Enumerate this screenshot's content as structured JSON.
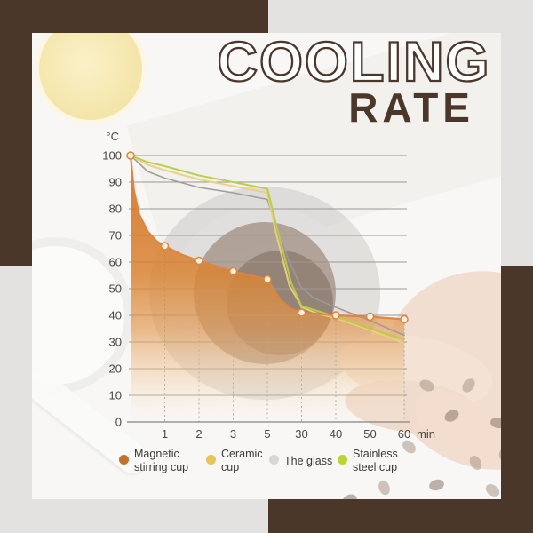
{
  "title": {
    "line1": "COOLING",
    "line2": "RATE"
  },
  "colors": {
    "frame_brown": "#4b372a",
    "background_gray": "#e4e2e0",
    "card_white": "#f8f7f5",
    "accent_orange": "#dd8440"
  },
  "chart_data": {
    "type": "line",
    "y_unit": "°C",
    "x_unit": "min",
    "ylim": [
      0,
      100
    ],
    "y_ticks": [
      0,
      10,
      20,
      30,
      40,
      50,
      60,
      70,
      80,
      90,
      100
    ],
    "x_ticks": [
      "1",
      "2",
      "3",
      "5",
      "30",
      "40",
      "50",
      "60"
    ],
    "x_scale_note": "categorical axis: equal spacing; point x given in tick-index units (0 = start at 100°C, 1..8 = ticks 1,2,3,5,30,40,50,60 min)",
    "grid": true,
    "series": [
      {
        "name": "The glass",
        "color": "#9d9a95",
        "width": 1.6,
        "area": false,
        "marker": false,
        "start": 100,
        "tick_values": {
          "1": 91.5,
          "2": 88,
          "3": 86,
          "5": 83.5,
          "30": 50.5,
          "40": 43,
          "50": 38,
          "60": 32.5
        },
        "points": [
          [
            0,
            100
          ],
          [
            0.5,
            94
          ],
          [
            1,
            91.5
          ],
          [
            2,
            88
          ],
          [
            3,
            86
          ],
          [
            4,
            83.5
          ],
          [
            4.3,
            71.5
          ],
          [
            4.6,
            61.5
          ],
          [
            4.95,
            51.5
          ],
          [
            5,
            50.5
          ],
          [
            5.35,
            46.5
          ],
          [
            6,
            43
          ],
          [
            7,
            38
          ],
          [
            8,
            32.5
          ]
        ]
      },
      {
        "name": "Ceramic cup",
        "color": "#ead083",
        "width": 2,
        "area": false,
        "marker": false,
        "start": 100,
        "tick_values": {
          "1": 94.5,
          "2": 91,
          "3": 88.5,
          "5": 86,
          "30": 43,
          "40": 39,
          "50": 34.5,
          "60": 29.5
        },
        "points": [
          [
            0,
            100
          ],
          [
            0.5,
            96.5
          ],
          [
            1,
            94.5
          ],
          [
            2,
            91
          ],
          [
            3,
            88.5
          ],
          [
            4,
            86
          ],
          [
            4.25,
            71
          ],
          [
            4.45,
            61
          ],
          [
            4.65,
            51
          ],
          [
            4.95,
            44.5
          ],
          [
            5,
            43
          ],
          [
            5.5,
            40.5
          ],
          [
            6,
            39
          ],
          [
            7,
            34.5
          ],
          [
            8,
            29.5
          ]
        ]
      },
      {
        "name": "Stainless steel cup",
        "color": "#b8cc45",
        "width": 2,
        "area": false,
        "marker": false,
        "start": 100,
        "tick_values": {
          "1": 96,
          "2": 92.5,
          "3": 90,
          "5": 87.5,
          "30": 43.5,
          "40": 39.5,
          "50": 35,
          "60": 31
        },
        "points": [
          [
            0,
            100
          ],
          [
            0.5,
            97.5
          ],
          [
            1,
            96
          ],
          [
            2,
            92.5
          ],
          [
            3,
            90
          ],
          [
            4,
            87.5
          ],
          [
            4.3,
            72
          ],
          [
            4.5,
            62
          ],
          [
            4.7,
            52
          ],
          [
            5,
            43.5
          ],
          [
            5.5,
            41.5
          ],
          [
            6,
            39.5
          ],
          [
            7,
            35
          ],
          [
            8,
            31
          ]
        ]
      },
      {
        "name": "Magnetic stirring cup",
        "color": "#dd8440",
        "width": 2.2,
        "area": true,
        "marker": true,
        "start": 100,
        "tick_values": {
          "1": 66,
          "2": 60.5,
          "3": 56.5,
          "5": 53.5,
          "30": 41,
          "40": 40,
          "50": 39.5,
          "60": 38.5
        },
        "points": [
          [
            0,
            100
          ],
          [
            0.1,
            87
          ],
          [
            0.25,
            78
          ],
          [
            0.5,
            71.5
          ],
          [
            0.75,
            68
          ],
          [
            1,
            66
          ],
          [
            1.5,
            62.8
          ],
          [
            2,
            60.5
          ],
          [
            3,
            56.5
          ],
          [
            4,
            53.5
          ],
          [
            4.4,
            45.5
          ],
          [
            4.7,
            42.5
          ],
          [
            5,
            41
          ],
          [
            6,
            40
          ],
          [
            7,
            39.5
          ],
          [
            8,
            38.5
          ]
        ]
      }
    ]
  },
  "legend": [
    {
      "label_lines": [
        "Magnetic",
        "stirring cup"
      ],
      "color": "#c0732e"
    },
    {
      "label_lines": [
        "Ceramic",
        "cup"
      ],
      "color": "#e6c457"
    },
    {
      "label_lines": [
        "The glass"
      ],
      "color": "#d8d6d2"
    },
    {
      "label_lines": [
        "Stainless",
        "steel cup"
      ],
      "color": "#bbd536"
    }
  ]
}
